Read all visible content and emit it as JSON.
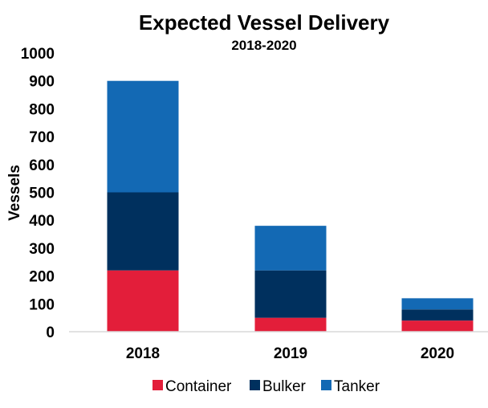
{
  "chart_data": {
    "type": "bar",
    "stacked": true,
    "title": "Expected Vessel Delivery",
    "subtitle": "2018-2020",
    "xlabel": "",
    "ylabel": "Vessels",
    "ylim": [
      0,
      1000
    ],
    "yticks": [
      "0",
      "100",
      "200",
      "300",
      "400",
      "500",
      "600",
      "700",
      "800",
      "900",
      "1000"
    ],
    "categories": [
      "2018",
      "2019",
      "2020"
    ],
    "series": [
      {
        "name": "Container",
        "color": "#E31E3A",
        "values": [
          220,
          50,
          40
        ]
      },
      {
        "name": "Bulker",
        "color": "#00305E",
        "values": [
          280,
          170,
          40
        ]
      },
      {
        "name": "Tanker",
        "color": "#1369B4",
        "values": [
          400,
          160,
          40
        ]
      }
    ],
    "grid": false,
    "legend_position": "bottom"
  }
}
